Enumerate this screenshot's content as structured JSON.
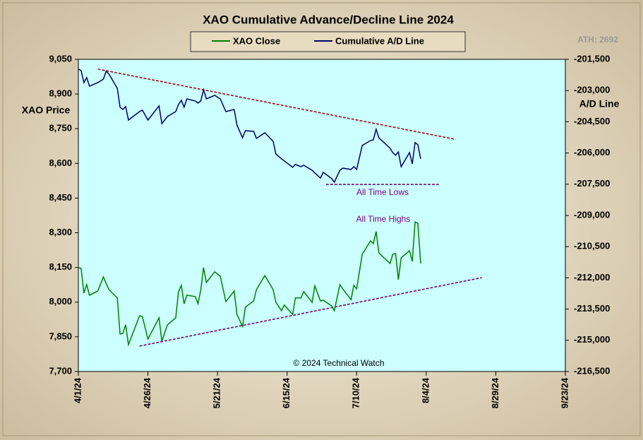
{
  "chart_data": {
    "type": "line",
    "title": "XAO Cumulative Advance/Decline Line 2024",
    "ylabel": "XAO Price",
    "y2label": "A/D Line",
    "note": "ATH: 2692",
    "credit": "© 2024 Technical Watch",
    "x": [
      "4/1/24",
      "4/2/24",
      "4/3/24",
      "4/4/24",
      "4/5/24",
      "4/8/24",
      "4/10/24",
      "4/11/24",
      "4/12/24",
      "4/15/24",
      "4/16/24",
      "4/17/24",
      "4/18/24",
      "4/19/24",
      "4/23/24",
      "4/24/24",
      "4/26/24",
      "4/30/24",
      "5/1/24",
      "5/3/24",
      "5/6/24",
      "5/7/24",
      "5/8/24",
      "5/9/24",
      "5/10/24",
      "5/13/24",
      "5/14/24",
      "5/15/24",
      "5/16/24",
      "5/17/24",
      "5/20/24",
      "5/22/24",
      "5/24/24",
      "5/27/24",
      "5/28/24",
      "5/30/24",
      "5/31/24",
      "6/3/24",
      "6/4/24",
      "6/7/24",
      "6/10/24",
      "6/11/24",
      "6/13/24",
      "6/14/24",
      "6/17/24",
      "6/18/24",
      "6/20/24",
      "6/21/24",
      "6/24/24",
      "6/25/24",
      "6/27/24",
      "6/28/24",
      "7/1/24",
      "7/2/24",
      "7/4/24",
      "7/5/24",
      "7/8/24",
      "7/9/24",
      "7/10/24",
      "7/12/24",
      "7/15/24",
      "7/16/24",
      "7/17/24",
      "7/18/24",
      "7/22/24",
      "7/23/24",
      "7/24/24",
      "7/25/24",
      "7/26/24",
      "7/29/24",
      "7/30/24",
      "7/31/24",
      "8/1/24",
      "8/2/24"
    ],
    "series": [
      {
        "name": "XAO Close",
        "color": "#008000",
        "values": [
          8149,
          8146,
          8039,
          8076,
          8030,
          8048,
          8109,
          8080,
          8054,
          8018,
          7862,
          7865,
          7902,
          7816,
          7941,
          7938,
          7840,
          7932,
          7831,
          7902,
          7932,
          8045,
          8073,
          7993,
          8030,
          8024,
          7993,
          8054,
          8149,
          8085,
          8131,
          8112,
          8002,
          8048,
          7947,
          7895,
          7978,
          8005,
          8054,
          8115,
          8054,
          7999,
          7963,
          7987,
          7947,
          8018,
          8018,
          8045,
          7999,
          8070,
          8005,
          8008,
          7984,
          7963,
          8076,
          8057,
          8011,
          8073,
          8057,
          8207,
          8265,
          8253,
          8305,
          8213,
          8167,
          8207,
          8210,
          8097,
          8192,
          8222,
          8176,
          8347,
          8340,
          8167
        ]
      },
      {
        "name": "Cumulative A/D Line",
        "color": "#000066",
        "axis": "y2",
        "values": [
          -201970,
          -202040,
          -202620,
          -202380,
          -202790,
          -202620,
          -202450,
          -202070,
          -202210,
          -202890,
          -203800,
          -203910,
          -203770,
          -204420,
          -204010,
          -203940,
          -204420,
          -203740,
          -204590,
          -204250,
          -204010,
          -203670,
          -203470,
          -203800,
          -203400,
          -203500,
          -203600,
          -203500,
          -202960,
          -203400,
          -203230,
          -203400,
          -204010,
          -203910,
          -204660,
          -205270,
          -204930,
          -204960,
          -205300,
          -205030,
          -205440,
          -206050,
          -206280,
          -206380,
          -206690,
          -206550,
          -206660,
          -206590,
          -206830,
          -206960,
          -207200,
          -206930,
          -207230,
          -207400,
          -206830,
          -206730,
          -206790,
          -206660,
          -206790,
          -205640,
          -205400,
          -205370,
          -204860,
          -205270,
          -205770,
          -205980,
          -206110,
          -205950,
          -206660,
          -205980,
          -206520,
          -205500,
          -205600,
          -206280
        ]
      }
    ],
    "trend_lines": [
      {
        "x": [
          "4/8/24",
          "8/14/24"
        ],
        "values": [
          -201970,
          -205330
        ],
        "axis": "y2",
        "color": "#990000"
      },
      {
        "x": [
          "6/29/24",
          "8/9/24"
        ],
        "values": [
          -207510,
          -207510
        ],
        "axis": "y2",
        "color": "#660066"
      },
      {
        "x": [
          "4/23/24",
          "8/24/24"
        ],
        "values": [
          7810,
          8106
        ],
        "color": "#660066"
      }
    ],
    "annotations": [
      "All Time Lows",
      "All Time Highs"
    ],
    "annotation_color": "#800080",
    "xlim": [
      "4/1/24",
      "9/23/24"
    ],
    "xticks": [
      "4/1/24",
      "4/26/24",
      "5/21/24",
      "6/15/24",
      "7/10/24",
      "8/4/24",
      "8/29/24",
      "9/23/24"
    ],
    "ylim": [
      7700,
      9050
    ],
    "yticks": [
      {
        "value": 7700,
        "label": "7,700"
      },
      {
        "value": 7850,
        "label": "7,850"
      },
      {
        "value": 8000,
        "label": "8,000"
      },
      {
        "value": 8150,
        "label": "8,150"
      },
      {
        "value": 8300,
        "label": "8,300"
      },
      {
        "value": 8450,
        "label": "8,450"
      },
      {
        "value": 8600,
        "label": "8,600"
      },
      {
        "value": 8750,
        "label": "8,750"
      },
      {
        "value": 8900,
        "label": "8,900"
      },
      {
        "value": 9050,
        "label": "9,050"
      }
    ],
    "y2lim": [
      -216500,
      -201500
    ],
    "y2ticks": [
      {
        "value": -216500,
        "label": "-216,500"
      },
      {
        "value": -215000,
        "label": "-215,000"
      },
      {
        "value": -213500,
        "label": "-213,500"
      },
      {
        "value": -212000,
        "label": "-212,000"
      },
      {
        "value": -210500,
        "label": "-210,500"
      },
      {
        "value": -209000,
        "label": "-209,000"
      },
      {
        "value": -207500,
        "label": "-207,500"
      },
      {
        "value": -206000,
        "label": "-206,000"
      },
      {
        "value": -204500,
        "label": "-204,500"
      },
      {
        "value": -203000,
        "label": "-203,000"
      },
      {
        "value": -201500,
        "label": "-201,500"
      }
    ],
    "plot_background": "#ccffff"
  }
}
